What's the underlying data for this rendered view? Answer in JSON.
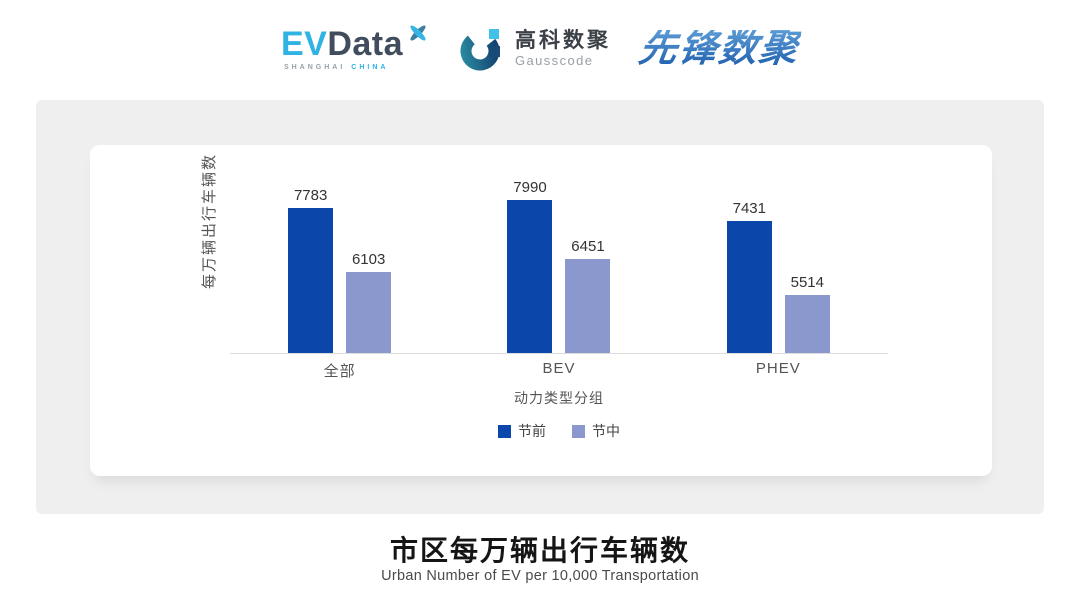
{
  "header": {
    "evdata": {
      "ev": "EV",
      "data": "Data",
      "sub_left": "SHANGHAI",
      "sub_right": "CHINA"
    },
    "gausscode": {
      "cn": "高科数聚",
      "en": "Gausscode"
    },
    "pioneer": {
      "text": "先锋数聚"
    }
  },
  "chart_data": {
    "type": "bar",
    "categories": [
      "全部",
      "BEV",
      "PHEV"
    ],
    "series": [
      {
        "name": "节前",
        "color": "#0b46ab",
        "values": [
          7783,
          7990,
          7431
        ]
      },
      {
        "name": "节中",
        "color": "#8b98ce",
        "values": [
          6103,
          6451,
          5514
        ]
      }
    ],
    "xlabel": "动力类型分组",
    "ylabel": "每万辆出行车辆数",
    "ylim": [
      4000,
      9000
    ],
    "grid": false,
    "legend_position": "bottom",
    "value_labels": true
  },
  "footer": {
    "title": "市区每万辆出行车辆数",
    "subtitle": "Urban Number of EV per 10,000 Transportation"
  },
  "colors": {
    "evdata_blue": "#2fb3e3",
    "evdata_dark": "#414d5c",
    "gausscode_teal": "#2a8ba0",
    "gausscode_navy": "#123c6e",
    "gausscode_cyan": "#3fc1e8",
    "pioneer_light": "#5b9bd5",
    "pioneer_dark": "#1f5fae",
    "series1": "#0b46ab",
    "series2": "#8b98ce"
  }
}
